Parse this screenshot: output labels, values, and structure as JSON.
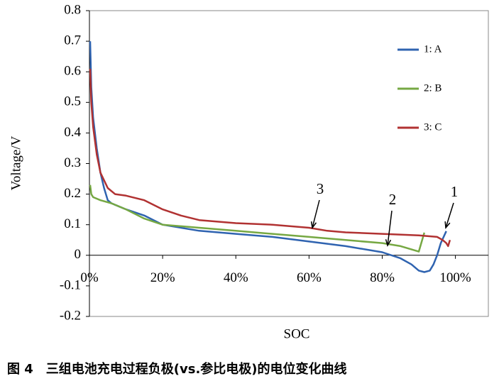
{
  "chart_data": {
    "type": "line",
    "y_label": "Voltage/V",
    "x_label": "SOC",
    "caption": "图 4　三组电池充电过程负极(vs.参比电极)的电位变化曲线",
    "annotations": [
      "1",
      "2",
      "3"
    ],
    "xlim": [
      0,
      109
    ],
    "ylim": [
      -0.2,
      0.8
    ],
    "xticks": [
      {
        "value": 0,
        "label": "0%"
      },
      {
        "value": 20,
        "label": "20%"
      },
      {
        "value": 40,
        "label": "40%"
      },
      {
        "value": 60,
        "label": "60%"
      },
      {
        "value": 80,
        "label": "80%"
      },
      {
        "value": 100,
        "label": "100%"
      }
    ],
    "yticks": [
      -0.2,
      -0.1,
      0,
      0.1,
      0.2,
      0.3,
      0.4,
      0.5,
      0.6,
      0.7,
      0.8
    ],
    "series": [
      {
        "name": "1: A",
        "color": "#2f63b0",
        "x": [
          0.2,
          0.5,
          1,
          2,
          3,
          4,
          5,
          6,
          8,
          10,
          15,
          20,
          30,
          40,
          50,
          60,
          70,
          80,
          85,
          88,
          90,
          91.5,
          93,
          94,
          95,
          96,
          97.5
        ],
        "values": [
          0.7,
          0.55,
          0.45,
          0.35,
          0.27,
          0.22,
          0.18,
          0.17,
          0.16,
          0.15,
          0.13,
          0.1,
          0.08,
          0.07,
          0.06,
          0.045,
          0.03,
          0.01,
          -0.01,
          -0.03,
          -0.05,
          -0.055,
          -0.05,
          -0.03,
          0,
          0.04,
          0.079
        ]
      },
      {
        "name": "2: B",
        "color": "#76a843",
        "x": [
          0.2,
          0.5,
          1,
          3,
          6,
          10,
          15,
          20,
          30,
          40,
          50,
          60,
          70,
          80,
          85,
          90,
          91.5
        ],
        "values": [
          0.23,
          0.2,
          0.19,
          0.18,
          0.17,
          0.15,
          0.12,
          0.1,
          0.09,
          0.08,
          0.07,
          0.06,
          0.05,
          0.04,
          0.03,
          0.012,
          0.074
        ]
      },
      {
        "name": "3: C",
        "color": "#b13232",
        "x": [
          0.2,
          0.5,
          1,
          2,
          3,
          5,
          7,
          10,
          15,
          20,
          25,
          30,
          40,
          50,
          60,
          65,
          70,
          80,
          90,
          95,
          96.5,
          97.5,
          98,
          98.5
        ],
        "values": [
          0.61,
          0.5,
          0.42,
          0.33,
          0.27,
          0.22,
          0.2,
          0.195,
          0.18,
          0.15,
          0.13,
          0.115,
          0.105,
          0.1,
          0.09,
          0.08,
          0.075,
          0.07,
          0.065,
          0.06,
          0.05,
          0.04,
          0.03,
          0.05
        ]
      }
    ]
  }
}
